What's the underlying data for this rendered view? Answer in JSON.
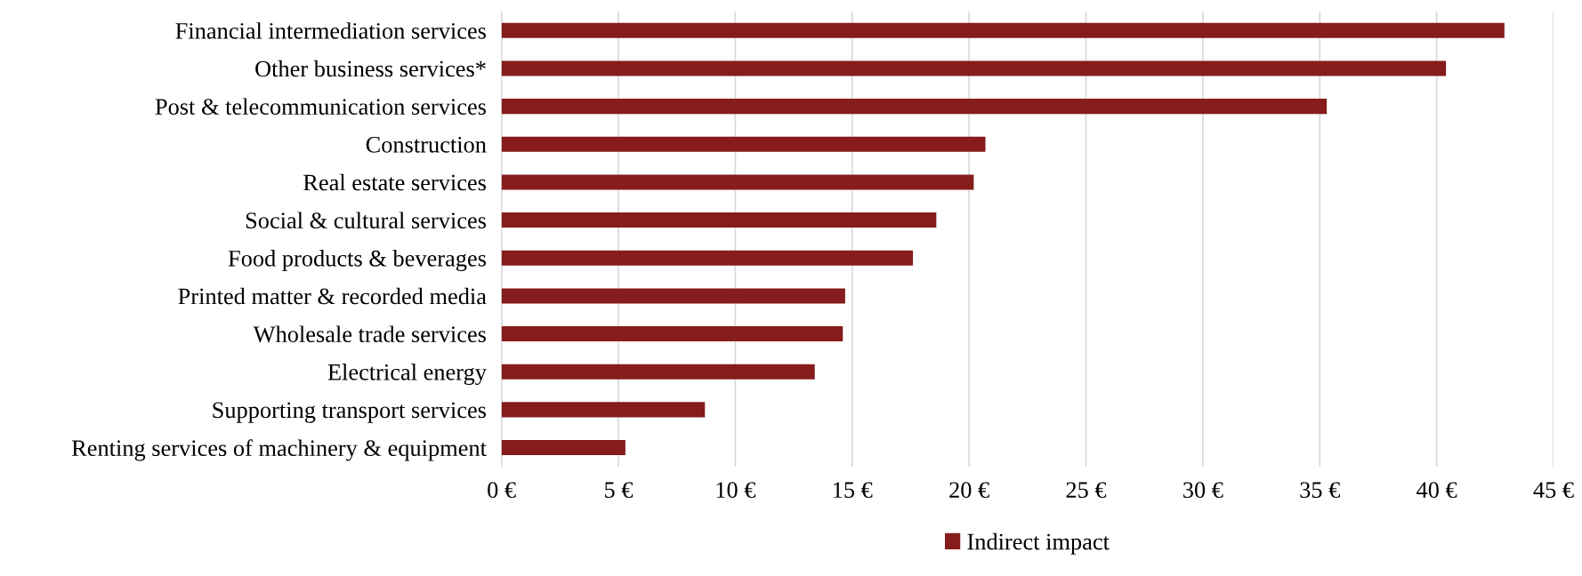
{
  "chart_data": {
    "type": "bar",
    "orientation": "horizontal",
    "categories": [
      "Financial intermediation services",
      "Other business services*",
      "Post & telecommunication services",
      "Construction",
      "Real estate services",
      "Social & cultural services",
      "Food products & beverages",
      "Printed matter & recorded media",
      "Wholesale trade services",
      "Electrical energy",
      "Supporting transport services",
      "Renting services of machinery & equipment"
    ],
    "series": [
      {
        "name": "Indirect impact",
        "color": "#861c1c",
        "values": [
          42.9,
          40.4,
          35.3,
          20.7,
          20.2,
          18.6,
          17.6,
          14.7,
          14.6,
          13.4,
          8.7,
          5.3
        ]
      }
    ],
    "xlim": [
      0,
      45
    ],
    "xticks": [
      {
        "value": 0,
        "label": "0 €"
      },
      {
        "value": 5,
        "label": "5 €"
      },
      {
        "value": 10,
        "label": "10 €"
      },
      {
        "value": 15,
        "label": "15 €"
      },
      {
        "value": 20,
        "label": "20 €"
      },
      {
        "value": 25,
        "label": "25 €"
      },
      {
        "value": 30,
        "label": "30 €"
      },
      {
        "value": 35,
        "label": "35 €"
      },
      {
        "value": 40,
        "label": "40 €"
      },
      {
        "value": 45,
        "label": "45 €"
      }
    ],
    "grid": "x",
    "legend": "bottom"
  }
}
